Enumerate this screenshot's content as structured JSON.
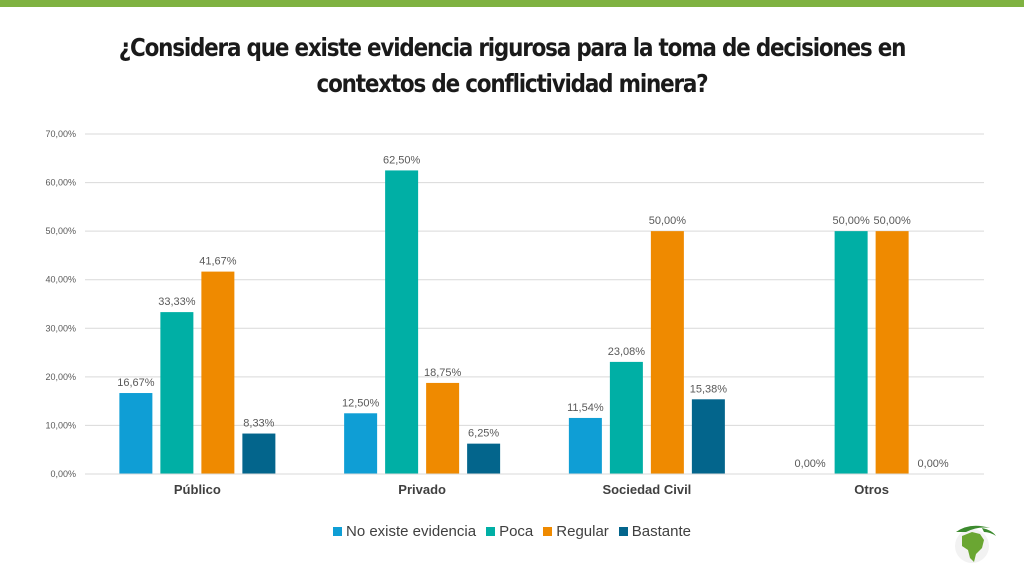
{
  "title": "¿Considera que existe evidencia rigurosa para la toma de decisiones en contextos de conflictividad minera?",
  "chart_data": {
    "type": "bar",
    "title": "¿Considera que existe evidencia rigurosa para la toma de decisiones en contextos de conflictividad minera?",
    "categories": [
      "Público",
      "Privado",
      "Sociedad Civil",
      "Otros"
    ],
    "series": [
      {
        "name": "No existe evidencia",
        "color": "#0f9ed5",
        "values": [
          16.67,
          12.5,
          11.54,
          0
        ],
        "labels": [
          "16,67%",
          "12,50%",
          "11,54%",
          "0,00%"
        ]
      },
      {
        "name": "Poca",
        "color": "#00afa5",
        "values": [
          33.33,
          62.5,
          23.08,
          50
        ],
        "labels": [
          "33,33%",
          "62,50%",
          "23,08%",
          "50,00%"
        ]
      },
      {
        "name": "Regular",
        "color": "#ef8a00",
        "values": [
          41.67,
          18.75,
          50,
          50
        ],
        "labels": [
          "41,67%",
          "18,75%",
          "50,00%",
          "50,00%"
        ]
      },
      {
        "name": "Bastante",
        "color": "#03658c",
        "values": [
          8.33,
          6.25,
          15.38,
          0
        ],
        "labels": [
          "8,33%",
          "6,25%",
          "15,38%",
          "0,00%"
        ]
      }
    ],
    "yticks": [
      "0,00%",
      "10,00%",
      "20,00%",
      "30,00%",
      "40,00%",
      "50,00%",
      "60,00%",
      "70,00%"
    ],
    "ylim": [
      0,
      70
    ],
    "xlabel": "",
    "ylabel": "",
    "grid": true,
    "legend_position": "bottom"
  }
}
